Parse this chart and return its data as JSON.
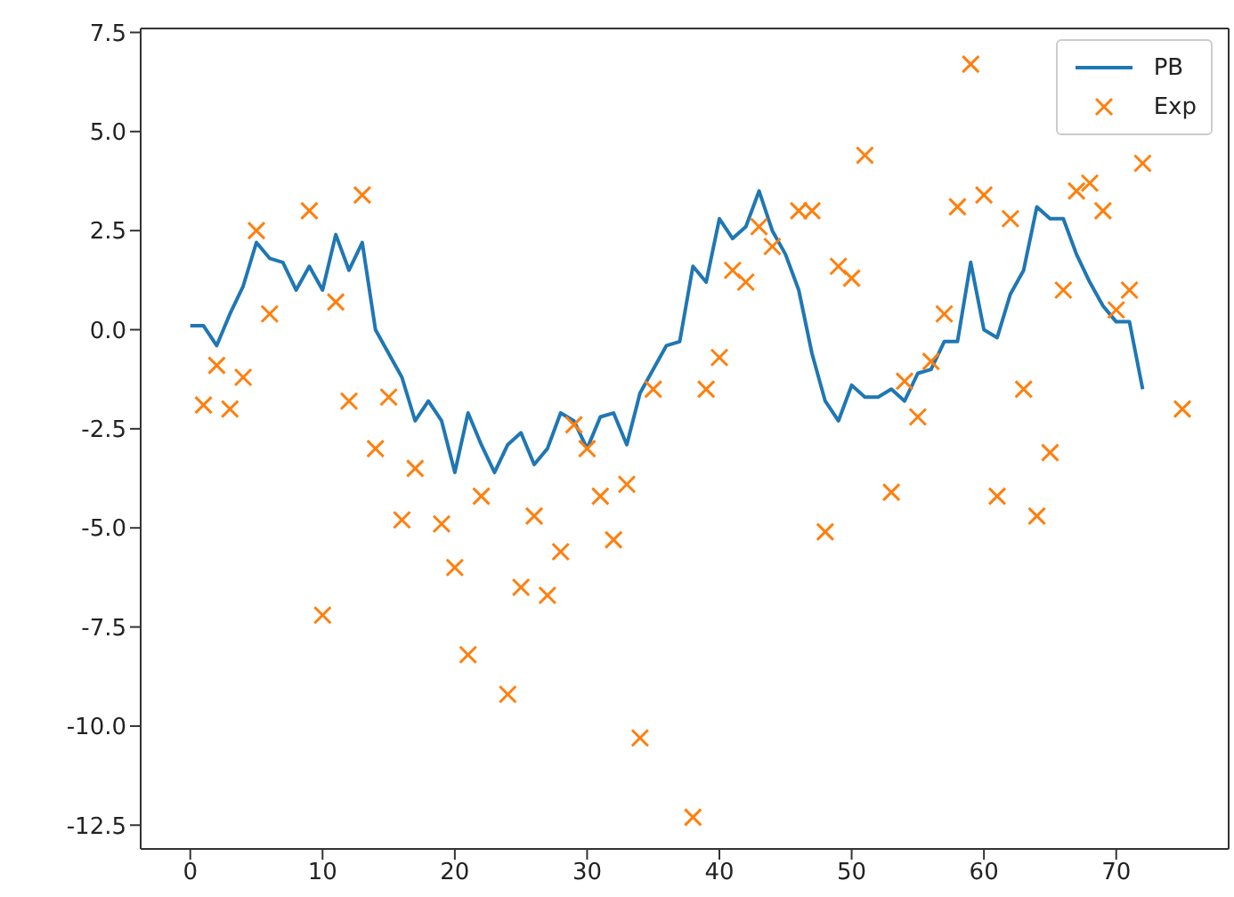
{
  "chart_data": {
    "type": "line",
    "xlim": [
      -3.75,
      78.5
    ],
    "ylim": [
      -13.1,
      7.6
    ],
    "xticks": [
      0,
      10,
      20,
      30,
      40,
      50,
      60,
      70
    ],
    "yticks": [
      {
        "value": -12.5,
        "label": "-12.5"
      },
      {
        "value": -10,
        "label": "-10.0"
      },
      {
        "value": -7.5,
        "label": "-7.5"
      },
      {
        "value": -5,
        "label": "-5.0"
      },
      {
        "value": -2.5,
        "label": "-2.5"
      },
      {
        "value": 0,
        "label": "0.0"
      },
      {
        "value": 2.5,
        "label": "2.5"
      },
      {
        "value": 5,
        "label": "5.0"
      },
      {
        "value": 7.5,
        "label": "7.5"
      }
    ],
    "legend": "top right",
    "series": [
      {
        "name": "PB",
        "marker": "none",
        "color": "#1f77b4",
        "x": [
          0,
          1,
          2,
          3,
          4,
          5,
          6,
          7,
          8,
          9,
          10,
          11,
          12,
          13,
          14,
          15,
          16,
          17,
          18,
          19,
          20,
          21,
          22,
          23,
          24,
          25,
          26,
          27,
          28,
          29,
          30,
          31,
          32,
          33,
          34,
          35,
          36,
          37,
          38,
          39,
          40,
          41,
          42,
          43,
          44,
          45,
          46,
          47,
          48,
          49,
          50,
          51,
          52,
          53,
          54,
          55,
          56,
          57,
          58,
          59,
          60,
          61,
          62,
          63,
          64,
          65,
          66,
          67,
          68,
          69,
          70,
          71,
          72
        ],
        "values": [
          0.1,
          0.1,
          -0.4,
          0.4,
          1.1,
          2.2,
          1.8,
          1.7,
          1.0,
          1.6,
          1.0,
          2.4,
          1.5,
          2.2,
          0.0,
          -0.6,
          -1.2,
          -2.3,
          -1.8,
          -2.3,
          -3.6,
          -2.1,
          -2.9,
          -3.6,
          -2.9,
          -2.6,
          -3.4,
          -3.0,
          -2.1,
          -2.3,
          -3.0,
          -2.2,
          -2.1,
          -2.9,
          -1.6,
          -1.0,
          -0.4,
          -0.3,
          1.6,
          1.2,
          2.8,
          2.3,
          2.6,
          3.5,
          2.5,
          1.9,
          1.0,
          -0.6,
          -1.8,
          -2.3,
          -1.4,
          -1.7,
          -1.7,
          -1.5,
          -1.8,
          -1.1,
          -1.0,
          -0.3,
          -0.3,
          1.7,
          0.0,
          -0.2,
          0.9,
          1.5,
          3.1,
          2.8,
          2.8,
          1.9,
          1.2,
          0.6,
          0.2,
          0.2,
          -1.5
        ]
      },
      {
        "name": "Exp",
        "type": "scatter",
        "marker": "cross",
        "color": "#ff7f0e",
        "x": [
          1,
          2,
          3,
          4,
          5,
          6,
          9,
          10,
          11,
          12,
          13,
          14,
          15,
          16,
          17,
          19,
          20,
          21,
          22,
          24,
          25,
          26,
          27,
          28,
          29,
          30,
          31,
          32,
          33,
          34,
          35,
          38,
          39,
          40,
          41,
          42,
          43,
          44,
          46,
          47,
          48,
          49,
          50,
          51,
          53,
          54,
          55,
          56,
          57,
          58,
          59,
          60,
          61,
          62,
          63,
          64,
          65,
          66,
          67,
          68,
          69,
          70,
          71,
          72,
          75
        ],
        "values": [
          -1.9,
          -0.9,
          -2.0,
          -1.2,
          2.5,
          0.4,
          3.0,
          -7.2,
          0.7,
          -1.8,
          3.4,
          -3.0,
          -1.7,
          -4.8,
          -3.5,
          -4.9,
          -6.0,
          -8.2,
          -4.2,
          -9.2,
          -6.5,
          -4.7,
          -6.7,
          -5.6,
          -2.4,
          -3.0,
          -4.2,
          -5.3,
          -3.9,
          -10.3,
          -1.5,
          -12.3,
          -1.5,
          -0.7,
          1.5,
          1.2,
          2.6,
          2.1,
          3.0,
          3.0,
          -5.1,
          1.6,
          1.3,
          4.4,
          -4.1,
          -1.3,
          -2.2,
          -0.8,
          0.4,
          3.1,
          6.7,
          3.4,
          -4.2,
          2.8,
          -1.5,
          -4.7,
          -3.1,
          1.0,
          3.5,
          3.7,
          3.0,
          0.5,
          1.0,
          4.2,
          -2.0
        ]
      }
    ]
  }
}
